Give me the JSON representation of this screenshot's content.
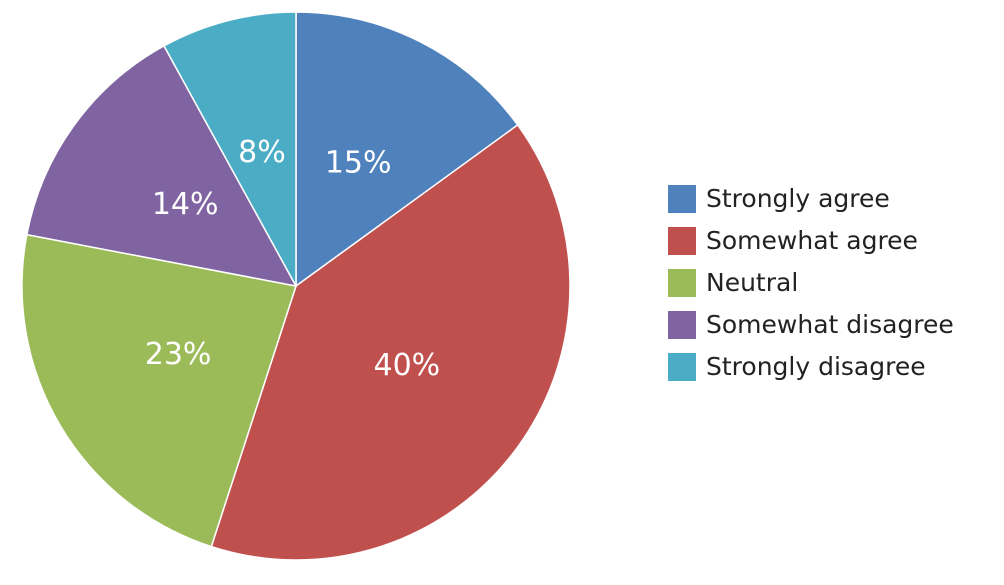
{
  "chart_data": {
    "type": "pie",
    "categories": [
      "Strongly agree",
      "Somewhat agree",
      "Neutral",
      "Somewhat disagree",
      "Strongly disagree"
    ],
    "values": [
      15,
      40,
      23,
      14,
      8
    ],
    "value_labels": [
      "15%",
      "40%",
      "23%",
      "14%",
      "8%"
    ],
    "colors": [
      "#4f81bd",
      "#c0504d",
      "#9bbb59",
      "#8064a2",
      "#4bacc6"
    ],
    "legend": "right"
  }
}
